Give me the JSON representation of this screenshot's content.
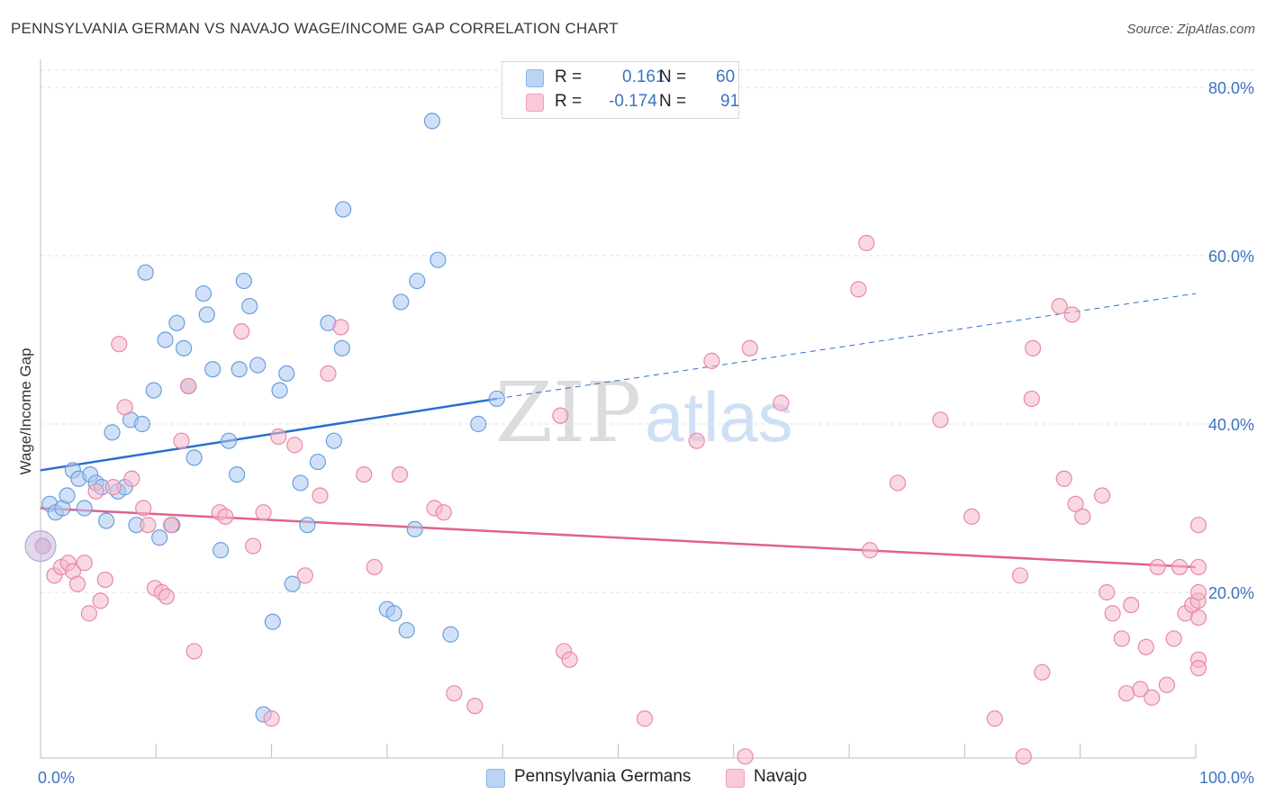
{
  "title": "PENNSYLVANIA GERMAN VS NAVAJO WAGE/INCOME GAP CORRELATION CHART",
  "source": "Source: ZipAtlas.com",
  "watermark": {
    "zip": "ZIP",
    "atlas": "atlas"
  },
  "legend": {
    "rows": [
      {
        "r_label": "R =",
        "r_value": "0.161",
        "n_label": "N =",
        "n_value": "60",
        "color": "#a9c8f0"
      },
      {
        "r_label": "R =",
        "r_value": "-0.174",
        "n_label": "N =",
        "n_value": "91",
        "color": "#f6b8cb"
      }
    ]
  },
  "bottom_legend": {
    "pennsylvania": "Pennsylvania Germans",
    "navajo": "Navajo"
  },
  "chart_data": {
    "type": "scatter",
    "title": "PENNSYLVANIA GERMAN VS NAVAJO WAGE/INCOME GAP CORRELATION CHART",
    "xlabel": "",
    "ylabel": "Wage/Income Gap",
    "xlim": [
      0,
      100
    ],
    "ylim": [
      0,
      85
    ],
    "x_tick_labels": [
      "0.0%",
      "100.0%"
    ],
    "y_ticks": [
      20,
      40,
      60,
      80
    ],
    "y_tick_labels": [
      "20.0%",
      "40.0%",
      "60.0%",
      "80.0%"
    ],
    "grid": true,
    "series": [
      {
        "name": "Pennsylvania Germans",
        "color": "#a9c8f0",
        "stroke": "#6a9fdc",
        "trend_color": "#2b6fcf",
        "trend": {
          "x0": 0,
          "y0": 34.5,
          "x1": 39.5,
          "y1": 43.0,
          "dash_to_x": 100,
          "dash_to_y": 55.5
        },
        "points": [
          [
            0.2,
            25.5
          ],
          [
            0.8,
            30.5
          ],
          [
            1.3,
            29.5
          ],
          [
            1.9,
            30.0
          ],
          [
            2.3,
            31.5
          ],
          [
            2.8,
            34.5
          ],
          [
            3.3,
            33.5
          ],
          [
            3.8,
            30.0
          ],
          [
            4.3,
            34.0
          ],
          [
            4.8,
            33.0
          ],
          [
            5.3,
            32.5
          ],
          [
            5.7,
            28.5
          ],
          [
            6.2,
            39.0
          ],
          [
            6.7,
            32.0
          ],
          [
            7.3,
            32.5
          ],
          [
            7.8,
            40.5
          ],
          [
            8.3,
            28.0
          ],
          [
            8.8,
            40.0
          ],
          [
            9.1,
            58.0
          ],
          [
            9.8,
            44.0
          ],
          [
            10.3,
            26.5
          ],
          [
            10.8,
            50.0
          ],
          [
            11.4,
            28.0
          ],
          [
            11.8,
            52.0
          ],
          [
            12.4,
            49.0
          ],
          [
            12.8,
            44.5
          ],
          [
            13.3,
            36.0
          ],
          [
            14.1,
            55.5
          ],
          [
            14.4,
            53.0
          ],
          [
            14.9,
            46.5
          ],
          [
            15.6,
            25.0
          ],
          [
            16.3,
            38.0
          ],
          [
            17.0,
            34.0
          ],
          [
            17.2,
            46.5
          ],
          [
            17.6,
            57.0
          ],
          [
            18.1,
            54.0
          ],
          [
            18.8,
            47.0
          ],
          [
            19.3,
            5.5
          ],
          [
            20.1,
            16.5
          ],
          [
            20.7,
            44.0
          ],
          [
            21.3,
            46.0
          ],
          [
            21.8,
            21.0
          ],
          [
            22.5,
            33.0
          ],
          [
            23.1,
            28.0
          ],
          [
            24.0,
            35.5
          ],
          [
            24.9,
            52.0
          ],
          [
            25.4,
            38.0
          ],
          [
            26.1,
            49.0
          ],
          [
            26.2,
            65.5
          ],
          [
            30.0,
            18.0
          ],
          [
            30.6,
            17.5
          ],
          [
            31.2,
            54.5
          ],
          [
            31.7,
            15.5
          ],
          [
            32.4,
            27.5
          ],
          [
            32.6,
            57.0
          ],
          [
            33.9,
            76.0
          ],
          [
            34.4,
            59.5
          ],
          [
            35.5,
            15.0
          ],
          [
            37.9,
            40.0
          ],
          [
            39.5,
            43.0
          ]
        ]
      },
      {
        "name": "Navajo",
        "color": "#f6b8cb",
        "stroke": "#e889a7",
        "trend_color": "#e0628c",
        "trend": {
          "x0": 0,
          "y0": 30.0,
          "x1": 100,
          "y1": 23.0
        },
        "points": [
          [
            0.2,
            25.5
          ],
          [
            1.2,
            22.0
          ],
          [
            1.8,
            23.0
          ],
          [
            2.4,
            23.5
          ],
          [
            2.8,
            22.5
          ],
          [
            3.2,
            21.0
          ],
          [
            3.8,
            23.5
          ],
          [
            4.2,
            17.5
          ],
          [
            4.8,
            32.0
          ],
          [
            5.2,
            19.0
          ],
          [
            5.6,
            21.5
          ],
          [
            6.3,
            32.5
          ],
          [
            6.8,
            49.5
          ],
          [
            7.3,
            42.0
          ],
          [
            7.9,
            33.5
          ],
          [
            8.9,
            30.0
          ],
          [
            9.3,
            28.0
          ],
          [
            9.9,
            20.5
          ],
          [
            10.5,
            20.0
          ],
          [
            10.9,
            19.5
          ],
          [
            11.3,
            28.0
          ],
          [
            12.2,
            38.0
          ],
          [
            12.8,
            44.5
          ],
          [
            13.3,
            13.0
          ],
          [
            15.5,
            29.5
          ],
          [
            16.0,
            29.0
          ],
          [
            17.4,
            51.0
          ],
          [
            18.4,
            25.5
          ],
          [
            19.3,
            29.5
          ],
          [
            20.0,
            5.0
          ],
          [
            20.6,
            38.5
          ],
          [
            22.0,
            37.5
          ],
          [
            22.9,
            22.0
          ],
          [
            24.2,
            31.5
          ],
          [
            24.9,
            46.0
          ],
          [
            26.0,
            51.5
          ],
          [
            28.0,
            34.0
          ],
          [
            28.9,
            23.0
          ],
          [
            31.1,
            34.0
          ],
          [
            34.1,
            30.0
          ],
          [
            34.9,
            29.5
          ],
          [
            35.8,
            8.0
          ],
          [
            37.6,
            6.5
          ],
          [
            45.0,
            41.0
          ],
          [
            45.3,
            13.0
          ],
          [
            45.8,
            12.0
          ],
          [
            52.3,
            5.0
          ],
          [
            56.8,
            38.0
          ],
          [
            58.1,
            47.5
          ],
          [
            61.0,
            0.5
          ],
          [
            61.4,
            49.0
          ],
          [
            64.1,
            42.5
          ],
          [
            70.8,
            56.0
          ],
          [
            71.5,
            61.5
          ],
          [
            71.8,
            25.0
          ],
          [
            74.2,
            33.0
          ],
          [
            77.9,
            40.5
          ],
          [
            80.6,
            29.0
          ],
          [
            82.6,
            5.0
          ],
          [
            84.8,
            22.0
          ],
          [
            85.1,
            0.5
          ],
          [
            85.8,
            43.0
          ],
          [
            85.9,
            49.0
          ],
          [
            86.7,
            10.5
          ],
          [
            88.2,
            54.0
          ],
          [
            88.6,
            33.5
          ],
          [
            89.3,
            53.0
          ],
          [
            89.6,
            30.5
          ],
          [
            90.2,
            29.0
          ],
          [
            91.9,
            31.5
          ],
          [
            92.3,
            20.0
          ],
          [
            92.8,
            17.5
          ],
          [
            93.6,
            14.5
          ],
          [
            94.0,
            8.0
          ],
          [
            94.4,
            18.5
          ],
          [
            95.2,
            8.5
          ],
          [
            95.7,
            13.5
          ],
          [
            96.2,
            7.5
          ],
          [
            96.7,
            23.0
          ],
          [
            97.5,
            9.0
          ],
          [
            98.1,
            14.5
          ],
          [
            98.6,
            23.0
          ],
          [
            99.1,
            17.5
          ],
          [
            99.7,
            18.5
          ],
          [
            100.2,
            19.0
          ],
          [
            100.7,
            28.0
          ],
          [
            101.2,
            17.0
          ],
          [
            101.6,
            12.0
          ],
          [
            102.2,
            20.0
          ],
          [
            102.6,
            11.0
          ],
          [
            103.1,
            23.0
          ]
        ]
      }
    ]
  }
}
